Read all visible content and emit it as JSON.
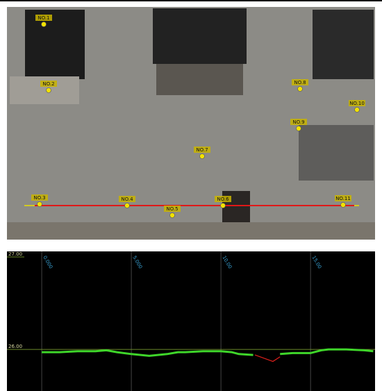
{
  "photo": {
    "points": [
      {
        "label": "NO.1"
      },
      {
        "label": "NO.2"
      },
      {
        "label": "NO.3"
      },
      {
        "label": "NO.4"
      },
      {
        "label": "NO.5"
      },
      {
        "label": "NO.6"
      },
      {
        "label": "NO.7"
      },
      {
        "label": "NO.8"
      },
      {
        "label": "NO.9"
      },
      {
        "label": "NO.10"
      },
      {
        "label": "NO.11"
      }
    ]
  },
  "chart_data": {
    "type": "line",
    "xlim": [
      -1.94,
      18.6
    ],
    "ylim": [
      25.55,
      27.06
    ],
    "xticks": [
      {
        "value": 0,
        "label": "0.000"
      },
      {
        "value": 5,
        "label": "5.000"
      },
      {
        "value": 10,
        "label": "10.00"
      },
      {
        "value": 15,
        "label": "15.00"
      }
    ],
    "yticks": [
      {
        "value": 27,
        "label": "27.00"
      },
      {
        "value": 26,
        "label": "26.00"
      }
    ],
    "series": [
      {
        "color": "#3fd62a",
        "x": [
          0,
          1,
          2,
          3,
          3.6,
          4.2,
          5,
          6,
          7,
          7.6,
          8,
          9,
          10,
          10.6,
          11,
          11.8,
          12.4,
          13.3,
          14,
          15,
          15.6,
          16,
          17,
          18,
          18.5
        ],
        "values": [
          25.97,
          25.97,
          25.98,
          25.98,
          25.99,
          25.97,
          25.95,
          25.93,
          25.95,
          25.97,
          25.97,
          25.98,
          25.98,
          25.97,
          25.95,
          25.94,
          null,
          25.95,
          25.96,
          25.96,
          25.99,
          26.0,
          26.0,
          25.99,
          25.98
        ]
      },
      {
        "color": "#e0201c",
        "x": [
          11.9,
          12.9,
          13.3
        ],
        "values": [
          25.94,
          25.87,
          25.92
        ]
      }
    ]
  }
}
